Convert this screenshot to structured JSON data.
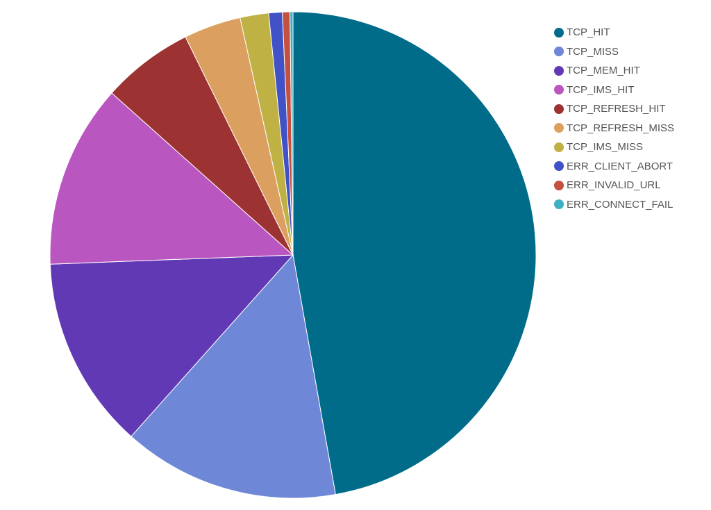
{
  "chart_data": {
    "type": "pie",
    "title": "",
    "legend_position": "right",
    "categories": [
      "TCP_HIT",
      "TCP_MISS",
      "TCP_MEM_HIT",
      "TCP_IMS_HIT",
      "TCP_REFRESH_HIT",
      "TCP_REFRESH_MISS",
      "TCP_IMS_MISS",
      "ERR_CLIENT_ABORT",
      "ERR_INVALID_URL",
      "ERR_CONNECT_FAIL"
    ],
    "values": [
      47.2,
      14.4,
      12.8,
      12.2,
      6.1,
      3.8,
      1.9,
      0.9,
      0.5,
      0.2
    ],
    "colors": [
      "#006c8a",
      "#6e88d7",
      "#6239b5",
      "#ba56c0",
      "#9c3332",
      "#dba05f",
      "#c0b144",
      "#4151c6",
      "#c4503f",
      "#3fb0c3"
    ],
    "start_angle_deg": 0,
    "direction": "clockwise"
  },
  "legend": {
    "items": [
      {
        "label": "TCP_HIT",
        "color": "#006c8a"
      },
      {
        "label": "TCP_MISS",
        "color": "#6e88d7"
      },
      {
        "label": "TCP_MEM_HIT",
        "color": "#6239b5"
      },
      {
        "label": "TCP_IMS_HIT",
        "color": "#ba56c0"
      },
      {
        "label": "TCP_REFRESH_HIT",
        "color": "#9c3332"
      },
      {
        "label": "TCP_REFRESH_MISS",
        "color": "#dba05f"
      },
      {
        "label": "TCP_IMS_MISS",
        "color": "#c0b144"
      },
      {
        "label": "ERR_CLIENT_ABORT",
        "color": "#4151c6"
      },
      {
        "label": "ERR_INVALID_URL",
        "color": "#c4503f"
      },
      {
        "label": "ERR_CONNECT_FAIL",
        "color": "#3fb0c3"
      }
    ]
  }
}
